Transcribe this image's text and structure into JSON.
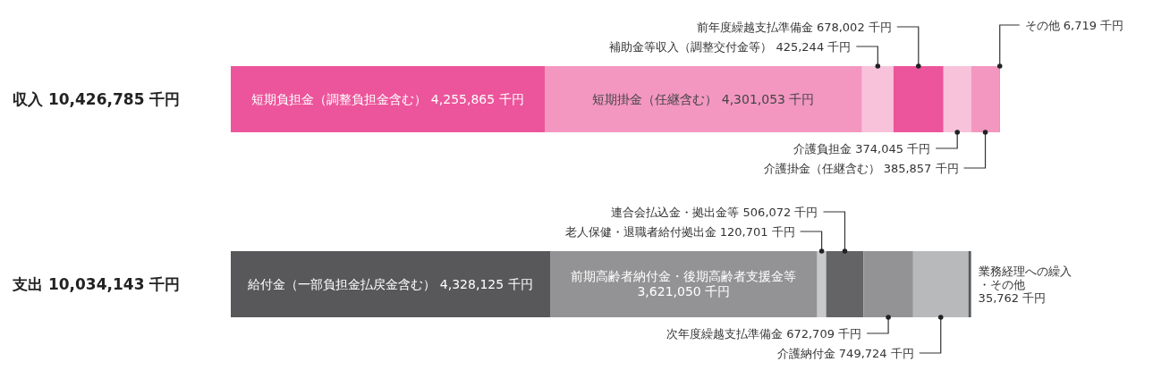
{
  "chart_data": {
    "type": "bar",
    "orientation": "horizontal",
    "stacked": true,
    "tick_labels": "y",
    "categories": [
      "収入 10,426,785 千円",
      "支出 10,034,143 千円"
    ],
    "series": [
      {
        "name": "短期負担金（調整負担金含む）",
        "color": "#ec559b",
        "values": [
          4255865,
          null
        ],
        "value_labels": [
          "4,255,865 千円",
          null
        ]
      },
      {
        "name": "短期掛金（任継含む）",
        "color": "#f397c0",
        "values": [
          4301053,
          null
        ],
        "value_labels": [
          "4,301,053 千円",
          null
        ]
      },
      {
        "name": "補助金等収入（調整交付金等）",
        "color": "#f8c3da",
        "values": [
          425244,
          null
        ],
        "value_labels": [
          "425,244 千円",
          null
        ]
      },
      {
        "name": "前年度繰越支払準備金",
        "color": "#ec559b",
        "values": [
          678002,
          null
        ],
        "value_labels": [
          "678,002 千円",
          null
        ]
      },
      {
        "name": "介護負担金",
        "color": "#f8c3da",
        "values": [
          374045,
          null
        ],
        "value_labels": [
          "374,045 千円",
          null
        ]
      },
      {
        "name": "介護掛金（任継含む）",
        "color": "#f397c0",
        "values": [
          385857,
          null
        ],
        "value_labels": [
          "385,857 千円",
          null
        ]
      },
      {
        "name": "その他",
        "color": "#ec559b",
        "values": [
          6719,
          null
        ],
        "value_labels": [
          "6,719 千円",
          null
        ]
      },
      {
        "name": "給付金（一部負担金払戻金含む）",
        "color": "#58585a",
        "values": [
          null,
          4328125
        ],
        "value_labels": [
          null,
          "4,328,125 千円"
        ]
      },
      {
        "name": "前期高齢者納付金・後期高齢者支援金等",
        "color": "#939395",
        "values": [
          null,
          3621050
        ],
        "value_labels": [
          null,
          "3,621,050 千円"
        ]
      },
      {
        "name": "老人保健・退職者給付拠出金",
        "color": "#c8c9cb",
        "values": [
          null,
          120701
        ],
        "value_labels": [
          null,
          "120,701 千円"
        ]
      },
      {
        "name": "連合会払込金・拠出金等",
        "color": "#646466",
        "values": [
          null,
          506072
        ],
        "value_labels": [
          null,
          "506,072 千円"
        ]
      },
      {
        "name": "次年度繰越支払準備金",
        "color": "#939395",
        "values": [
          null,
          672709
        ],
        "value_labels": [
          null,
          "672,709 千円"
        ]
      },
      {
        "name": "介護納付金",
        "color": "#b8b9bb",
        "values": [
          null,
          749724
        ],
        "value_labels": [
          null,
          "749,724 千円"
        ]
      },
      {
        "name": "業務経理への繰入・その他",
        "color": "#58585a",
        "values": [
          null,
          35762
        ],
        "value_labels": [
          null,
          "35,762 千円"
        ]
      }
    ]
  }
}
